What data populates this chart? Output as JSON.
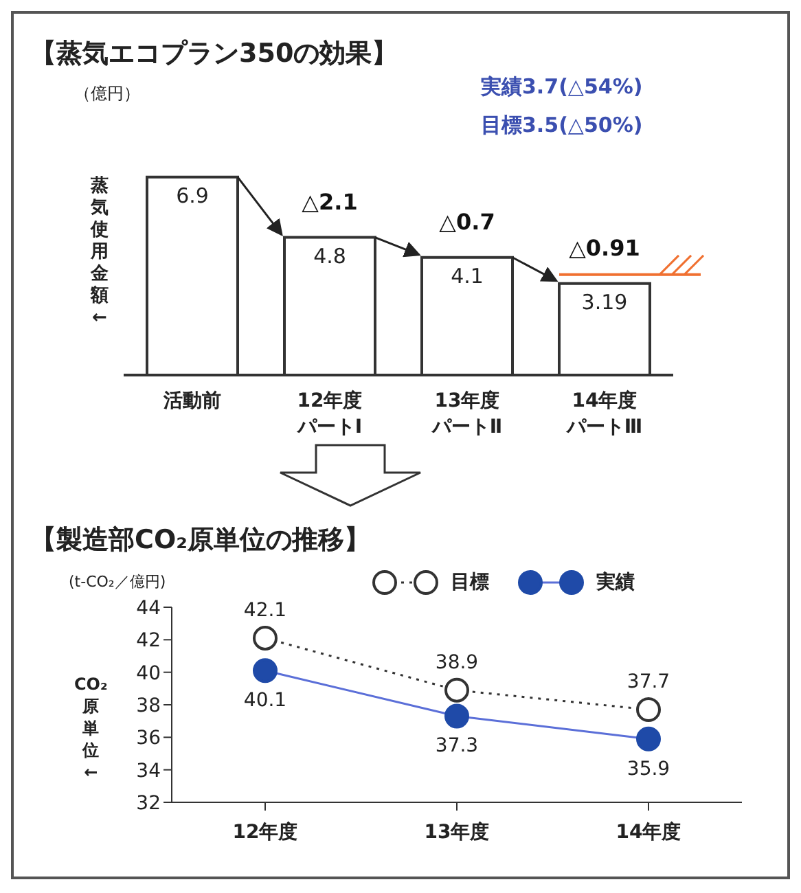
{
  "chart_data": [
    {
      "type": "bar",
      "title": "【蒸気エコプラン350の効果】",
      "ylabel": "蒸気使用金額←",
      "categories": [
        "活動前",
        "12年度パートⅠ",
        "13年度パートⅡ",
        "14年度パートⅢ"
      ],
      "values": [
        6.9,
        4.8,
        4.1,
        3.19
      ],
      "color": "#ffffff",
      "data_labels": true,
      "ref_lines": [
        {
          "axis": "y",
          "value": 3.5,
          "color": "#f07030"
        }
      ],
      "annotations": [
        "（億円）",
        "実績3.7(△54%)",
        "目標3.5(△50%)",
        "△2.1",
        "△0.7",
        "△0.91"
      ]
    },
    {
      "type": "line",
      "title": "【製造部CO₂原単位の推移】",
      "ylabel": "CO₂原単位←",
      "categories": [
        "12年度",
        "13年度",
        "14年度"
      ],
      "series": [
        {
          "name": "目標",
          "color": "#404040",
          "values": [
            42.1,
            38.9,
            37.7
          ],
          "line_style": "dotted"
        },
        {
          "name": "実績",
          "color": "#1f4aa8",
          "values": [
            40.1,
            37.3,
            35.9
          ],
          "line_style": "solid"
        }
      ],
      "ylim": [
        32,
        44
      ],
      "yticks": [
        32,
        34,
        36,
        38,
        40,
        42,
        44
      ],
      "marker": "circle",
      "data_labels": true,
      "legend": "top",
      "annotations": [
        "(t-CO₂／億円)"
      ]
    }
  ]
}
